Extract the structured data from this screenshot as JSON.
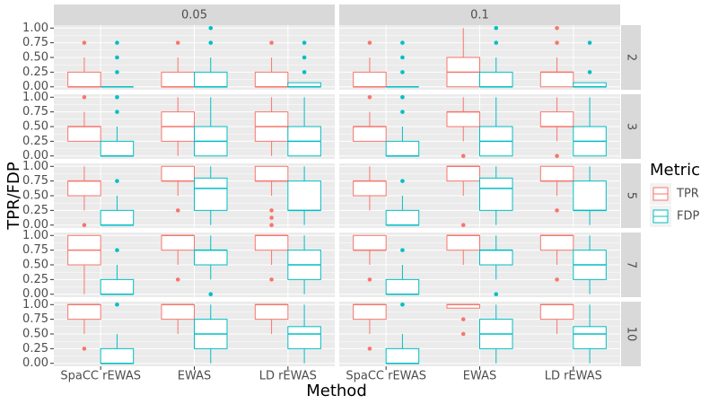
{
  "chart_data": {
    "type": "boxplot",
    "x_label": "Method",
    "y_label": "TPR/FDP",
    "legend_title": "Metric",
    "col_facets": [
      "0.05",
      "0.1"
    ],
    "row_facets": [
      "2",
      "3",
      "5",
      "7",
      "10"
    ],
    "categories": [
      "SpaCC rEWAS",
      "EWAS",
      "LD rEWAS"
    ],
    "ylim": [
      -0.05,
      1.05
    ],
    "yticks": [
      {
        "value": 0,
        "label": "0.00"
      },
      {
        "value": 0.25,
        "label": "0.25"
      },
      {
        "value": 0.5,
        "label": "0.50"
      },
      {
        "value": 0.75,
        "label": "0.75"
      },
      {
        "value": 1,
        "label": "1.00"
      }
    ],
    "grid": true,
    "series": [
      {
        "name": "TPR",
        "color": "#F8766D",
        "data": [
          [
            [
              {
                "stats": [
                  0,
                  0,
                  0,
                  0.25,
                  0.5
                ],
                "outliers": [
                  0.75
                ]
              },
              {
                "stats": [
                  0,
                  0,
                  0,
                  0.25,
                  0.5
                ],
                "outliers": [
                  0.75
                ]
              },
              {
                "stats": [
                  0,
                  0,
                  0,
                  0.25,
                  0.5
                ],
                "outliers": [
                  0.75
                ]
              }
            ],
            [
              {
                "stats": [
                  0,
                  0,
                  0,
                  0.25,
                  0.5
                ],
                "outliers": [
                  0.75
                ]
              },
              {
                "stats": [
                  0,
                  0,
                  0.25,
                  0.5,
                  1
                ],
                "outliers": []
              },
              {
                "stats": [
                  0,
                  0,
                  0.25,
                  0.25,
                  0.5
                ],
                "outliers": [
                  0.75,
                  1
                ]
              }
            ]
          ],
          [
            [
              {
                "stats": [
                  0.25,
                  0.25,
                  0.5,
                  0.5,
                  0.75
                ],
                "outliers": [
                  1
                ]
              },
              {
                "stats": [
                  0,
                  0.25,
                  0.5,
                  0.75,
                  1
                ],
                "outliers": []
              },
              {
                "stats": [
                  0,
                  0.25,
                  0.5,
                  0.75,
                  1
                ],
                "outliers": []
              }
            ],
            [
              {
                "stats": [
                  0.25,
                  0.25,
                  0.5,
                  0.5,
                  0.75
                ],
                "outliers": [
                  1
                ]
              },
              {
                "stats": [
                  0.25,
                  0.5,
                  0.75,
                  0.75,
                  1
                ],
                "outliers": [
                  0
                ]
              },
              {
                "stats": [
                  0.25,
                  0.5,
                  0.5,
                  0.75,
                  1
                ],
                "outliers": [
                  0
                ]
              }
            ]
          ],
          [
            [
              {
                "stats": [
                  0.25,
                  0.5,
                  0.75,
                  0.75,
                  1
                ],
                "outliers": [
                  0
                ]
              },
              {
                "stats": [
                  0.5,
                  0.75,
                  0.75,
                  1,
                  1
                ],
                "outliers": [
                  0.25
                ]
              },
              {
                "stats": [
                  0.5,
                  0.75,
                  0.75,
                  1,
                  1
                ],
                "outliers": [
                  0.25,
                  0.125,
                  0
                ]
              }
            ],
            [
              {
                "stats": [
                  0.25,
                  0.5,
                  0.75,
                  0.75,
                  1
                ],
                "outliers": []
              },
              {
                "stats": [
                  0.5,
                  0.75,
                  1,
                  1,
                  1
                ],
                "outliers": [
                  0
                ]
              },
              {
                "stats": [
                  0.5,
                  0.75,
                  0.75,
                  1,
                  1
                ],
                "outliers": [
                  0.25
                ]
              }
            ]
          ],
          [
            [
              {
                "stats": [
                  0,
                  0.5,
                  0.75,
                  1,
                  1
                ],
                "outliers": []
              },
              {
                "stats": [
                  0.5,
                  0.75,
                  1,
                  1,
                  1
                ],
                "outliers": [
                  0.25
                ]
              },
              {
                "stats": [
                  0.5,
                  0.75,
                  1,
                  1,
                  1
                ],
                "outliers": [
                  0.25
                ]
              }
            ],
            [
              {
                "stats": [
                  0.5,
                  0.75,
                  0.75,
                  1,
                  1
                ],
                "outliers": [
                  0.25
                ]
              },
              {
                "stats": [
                  0.5,
                  0.75,
                  1,
                  1,
                  1
                ],
                "outliers": []
              },
              {
                "stats": [
                  0.5,
                  0.75,
                  1,
                  1,
                  1
                ],
                "outliers": [
                  0.25
                ]
              }
            ]
          ],
          [
            [
              {
                "stats": [
                  0.5,
                  0.75,
                  1,
                  1,
                  1
                ],
                "outliers": [
                  0.25
                ]
              },
              {
                "stats": [
                  0.5,
                  0.75,
                  1,
                  1,
                  1
                ],
                "outliers": []
              },
              {
                "stats": [
                  0.5,
                  0.75,
                  1,
                  1,
                  1
                ],
                "outliers": []
              }
            ],
            [
              {
                "stats": [
                  0.5,
                  0.75,
                  1,
                  1,
                  1
                ],
                "outliers": [
                  0.25
                ]
              },
              {
                "stats": [
                  0.94,
                  0.94,
                  1,
                  1,
                  1
                ],
                "outliers": [
                  0.75,
                  0.5
                ]
              },
              {
                "stats": [
                  0.5,
                  0.75,
                  1,
                  1,
                  1
                ],
                "outliers": []
              }
            ]
          ]
        ]
      },
      {
        "name": "FDP",
        "color": "#00BFC4",
        "data": [
          [
            [
              {
                "stats": [
                  0,
                  0,
                  0,
                  0,
                  0
                ],
                "outliers": [
                  0.25,
                  0.5,
                  0.75
                ]
              },
              {
                "stats": [
                  0,
                  0,
                  0,
                  0.25,
                  0.5
                ],
                "outliers": [
                  0.75,
                  1
                ]
              },
              {
                "stats": [
                  0,
                  0,
                  0,
                  0.07,
                  0.07
                ],
                "outliers": [
                  0.25,
                  0.5,
                  0.75
                ]
              }
            ],
            [
              {
                "stats": [
                  0,
                  0,
                  0,
                  0,
                  0
                ],
                "outliers": [
                  0.25,
                  0.5,
                  0.75
                ]
              },
              {
                "stats": [
                  0,
                  0,
                  0,
                  0.25,
                  0.5
                ],
                "outliers": [
                  0.75,
                  1
                ]
              },
              {
                "stats": [
                  0,
                  0,
                  0,
                  0.07,
                  0.07
                ],
                "outliers": [
                  0.25,
                  0.75
                ]
              }
            ]
          ],
          [
            [
              {
                "stats": [
                  0,
                  0,
                  0,
                  0.25,
                  0.5
                ],
                "outliers": [
                  0.75,
                  1
                ]
              },
              {
                "stats": [
                  0,
                  0,
                  0.25,
                  0.5,
                  1
                ],
                "outliers": []
              },
              {
                "stats": [
                  0,
                  0,
                  0.25,
                  0.5,
                  1
                ],
                "outliers": []
              }
            ],
            [
              {
                "stats": [
                  0,
                  0,
                  0,
                  0.25,
                  0.5
                ],
                "outliers": [
                  0.75,
                  1
                ]
              },
              {
                "stats": [
                  0,
                  0,
                  0.25,
                  0.5,
                  1
                ],
                "outliers": []
              },
              {
                "stats": [
                  0,
                  0,
                  0.25,
                  0.5,
                  1
                ],
                "outliers": []
              }
            ]
          ],
          [
            [
              {
                "stats": [
                  0,
                  0,
                  0,
                  0.25,
                  0.5
                ],
                "outliers": [
                  0.75
                ]
              },
              {
                "stats": [
                  0,
                  0.25,
                  0.625,
                  0.8,
                  1
                ],
                "outliers": []
              },
              {
                "stats": [
                  0,
                  0.25,
                  0.25,
                  0.75,
                  1
                ],
                "outliers": []
              }
            ],
            [
              {
                "stats": [
                  0,
                  0,
                  0,
                  0.25,
                  0.5
                ],
                "outliers": [
                  0.75
                ]
              },
              {
                "stats": [
                  0,
                  0.25,
                  0.625,
                  0.8,
                  1
                ],
                "outliers": []
              },
              {
                "stats": [
                  0,
                  0.25,
                  0.25,
                  0.75,
                  1
                ],
                "outliers": []
              }
            ]
          ],
          [
            [
              {
                "stats": [
                  0,
                  0,
                  0,
                  0.25,
                  0.5
                ],
                "outliers": [
                  0.75
                ]
              },
              {
                "stats": [
                  0.25,
                  0.5,
                  0.75,
                  0.75,
                  1
                ],
                "outliers": [
                  0
                ]
              },
              {
                "stats": [
                  0,
                  0.25,
                  0.5,
                  0.75,
                  1
                ],
                "outliers": []
              }
            ],
            [
              {
                "stats": [
                  0,
                  0,
                  0,
                  0.25,
                  0.5
                ],
                "outliers": [
                  0.75
                ]
              },
              {
                "stats": [
                  0.25,
                  0.5,
                  0.75,
                  0.75,
                  1
                ],
                "outliers": [
                  0
                ]
              },
              {
                "stats": [
                  0,
                  0.25,
                  0.5,
                  0.75,
                  1
                ],
                "outliers": []
              }
            ]
          ],
          [
            [
              {
                "stats": [
                  0,
                  0,
                  0,
                  0.25,
                  0.5
                ],
                "outliers": [
                  1
                ]
              },
              {
                "stats": [
                  0,
                  0.25,
                  0.5,
                  0.75,
                  1
                ],
                "outliers": []
              },
              {
                "stats": [
                  0,
                  0.25,
                  0.5,
                  0.625,
                  1
                ],
                "outliers": []
              }
            ],
            [
              {
                "stats": [
                  0,
                  0,
                  0,
                  0.25,
                  0.5
                ],
                "outliers": [
                  1
                ]
              },
              {
                "stats": [
                  0,
                  0.25,
                  0.5,
                  0.75,
                  1
                ],
                "outliers": []
              },
              {
                "stats": [
                  0,
                  0.25,
                  0.5,
                  0.625,
                  1
                ],
                "outliers": []
              }
            ]
          ]
        ]
      }
    ]
  }
}
